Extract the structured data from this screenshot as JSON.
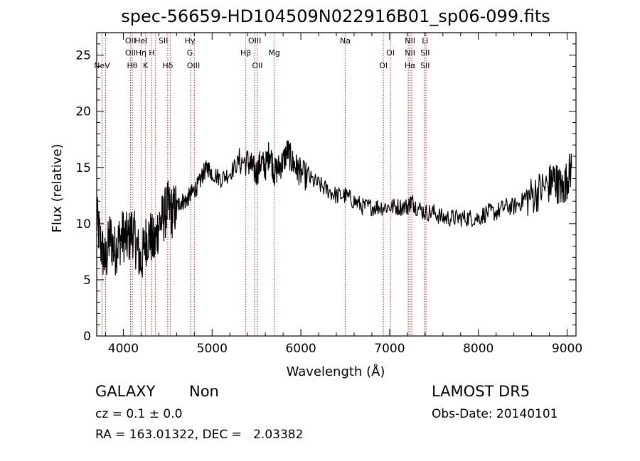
{
  "chart_data": {
    "type": "line",
    "title": "spec-56659-HD104509N022916B01_sp06-099.fits",
    "xlabel": "Wavelength (Å)",
    "ylabel": "Flux (relative)",
    "xlim": [
      3700,
      9100
    ],
    "ylim": [
      0,
      27
    ],
    "xticks": [
      4000,
      5000,
      6000,
      7000,
      8000,
      9000
    ],
    "yticks": [
      0,
      5,
      10,
      15,
      20,
      25
    ],
    "grid": false,
    "series": [
      {
        "x": [
          3700,
          3750,
          3800,
          3850,
          3900,
          3950,
          4000,
          4050,
          4100,
          4150,
          4200,
          4250,
          4300,
          4350,
          4400,
          4450,
          4500,
          4550,
          4600,
          4650,
          4700,
          4750,
          4800,
          4850,
          4900,
          4950,
          5000,
          5100,
          5200,
          5300,
          5400,
          5450,
          5500,
          5550,
          5600,
          5650,
          5700,
          5750,
          5800,
          5850,
          5900,
          5950,
          6000,
          6100,
          6200,
          6300,
          6400,
          6500,
          6600,
          6700,
          6800,
          6900,
          7000,
          7100,
          7200,
          7250,
          7300,
          7400,
          7500,
          7600,
          7700,
          7800,
          7900,
          8000,
          8100,
          8200,
          8300,
          8400,
          8500,
          8600,
          8700,
          8800,
          8850,
          8900,
          8950,
          9000,
          9050
        ],
        "y": [
          10.5,
          8.0,
          6.5,
          9.0,
          7.5,
          8.5,
          9.0,
          8.5,
          9.5,
          8.0,
          6.5,
          8.5,
          9.0,
          8.0,
          10.0,
          10.5,
          11.5,
          11.0,
          11.5,
          12.0,
          12.0,
          12.5,
          13.0,
          13.5,
          14.5,
          15.0,
          14.5,
          14.0,
          14.5,
          15.5,
          15.5,
          15.0,
          14.5,
          15.5,
          15.0,
          16.5,
          14.5,
          15.0,
          15.5,
          16.5,
          15.5,
          15.0,
          14.5,
          14.0,
          13.5,
          13.0,
          12.5,
          12.5,
          12.0,
          11.5,
          11.5,
          11.5,
          11.5,
          11.5,
          11.5,
          12.0,
          11.5,
          11.0,
          11.0,
          10.5,
          10.5,
          10.5,
          10.5,
          10.5,
          11.0,
          11.0,
          11.5,
          11.5,
          12.0,
          12.5,
          13.0,
          13.5,
          14.0,
          13.5,
          13.0,
          14.0,
          15.0
        ]
      }
    ],
    "line_labels": [
      {
        "wavelength": 3760,
        "rows": [
          "",
          "",
          "NeV"
        ]
      },
      {
        "wavelength": 4080,
        "rows": [
          "OII",
          "OII",
          ""
        ]
      },
      {
        "wavelength": 4101,
        "rows": [
          "",
          "",
          "Hθ"
        ]
      },
      {
        "wavelength": 4200,
        "rows": [
          "HeI",
          "Hη",
          ""
        ]
      },
      {
        "wavelength": 4250,
        "rows": [
          "",
          "",
          "K"
        ]
      },
      {
        "wavelength": 4320,
        "rows": [
          "",
          "H",
          ""
        ]
      },
      {
        "wavelength": 4450,
        "rows": [
          "SII",
          "",
          ""
        ]
      },
      {
        "wavelength": 4500,
        "rows": [
          "",
          "",
          "Hδ"
        ]
      },
      {
        "wavelength": 4750,
        "rows": [
          "Hγ",
          "G",
          ""
        ]
      },
      {
        "wavelength": 4790,
        "rows": [
          "",
          "",
          "OIII"
        ]
      },
      {
        "wavelength": 5380,
        "rows": [
          "",
          "Hβ",
          ""
        ]
      },
      {
        "wavelength": 5480,
        "rows": [
          "OIII",
          "",
          ""
        ]
      },
      {
        "wavelength": 5510,
        "rows": [
          "",
          "",
          "OII"
        ]
      },
      {
        "wavelength": 5700,
        "rows": [
          "",
          "Mg",
          ""
        ]
      },
      {
        "wavelength": 6500,
        "rows": [
          "Na",
          "",
          ""
        ]
      },
      {
        "wavelength": 6930,
        "rows": [
          "",
          "",
          "OI"
        ]
      },
      {
        "wavelength": 7010,
        "rows": [
          "",
          "OI",
          ""
        ]
      },
      {
        "wavelength": 7230,
        "rows": [
          "NII",
          "NII",
          "Hα"
        ]
      },
      {
        "wavelength": 7400,
        "rows": [
          "Li",
          "SII",
          "SII"
        ]
      }
    ],
    "line_markers": [
      3760,
      3800,
      4080,
      4101,
      4200,
      4250,
      4320,
      4360,
      4500,
      4530,
      4760,
      4800,
      5380,
      5480,
      5510,
      5700,
      6500,
      6930,
      7010,
      7210,
      7230,
      7250,
      7390,
      7410
    ]
  },
  "info": {
    "class": "GALAXY",
    "subclass": "Non",
    "survey": "LAMOST DR5",
    "cz": "cz = 0.1 ± 0.0",
    "obsdate": "Obs-Date: 20140101",
    "coords": "RA = 163.01322, DEC =   2.03382"
  },
  "colors": {
    "spectrum": "#000000",
    "line_marker": "#cc2222",
    "axis": "#000000"
  }
}
